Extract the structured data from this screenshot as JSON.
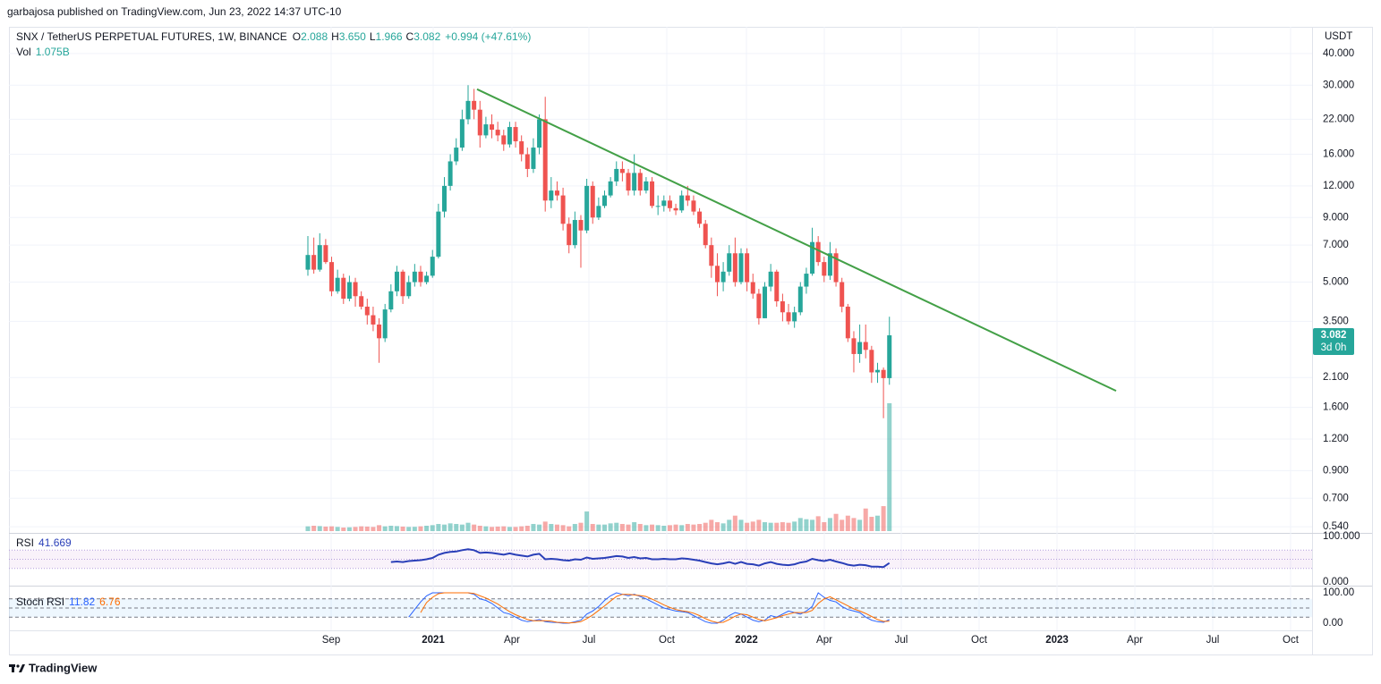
{
  "header": {
    "text": "garbajosa published on TradingView.com, Jun 23, 2022 14:37 UTC-10"
  },
  "footer": {
    "brand": "TradingView"
  },
  "chart_data": {
    "type": "candlestick",
    "title": "SNX / TetherUS PERPETUAL FUTURES, 1W, BINANCE",
    "ohlc_legend": [
      {
        "label": "O",
        "value": "2.088"
      },
      {
        "label": "H",
        "value": "3.650"
      },
      {
        "label": "L",
        "value": "1.966"
      },
      {
        "label": "C",
        "value": "3.082"
      }
    ],
    "change": "+0.994 (+47.61%)",
    "currency": "USDT",
    "log_scale": true,
    "grid": true,
    "up_color": "#26a69a",
    "down_color": "#ef5350",
    "ylim": [
      0.515,
      51
    ],
    "yticks": [
      {
        "value": 40,
        "label": "40.000"
      },
      {
        "value": 30,
        "label": "30.000"
      },
      {
        "value": 22,
        "label": "22.000"
      },
      {
        "value": 16,
        "label": "16.000"
      },
      {
        "value": 12,
        "label": "12.000"
      },
      {
        "value": 9,
        "label": "9.000"
      },
      {
        "value": 7,
        "label": "7.000"
      },
      {
        "value": 5,
        "label": "5.000"
      },
      {
        "value": 3.5,
        "label": "3.500"
      },
      {
        "value": 2.1,
        "label": "2.100"
      },
      {
        "value": 1.6,
        "label": "1.600"
      },
      {
        "value": 1.2,
        "label": "1.200"
      },
      {
        "value": 0.9,
        "label": "0.900"
      },
      {
        "value": 0.7,
        "label": "0.700"
      },
      {
        "value": 0.54,
        "label": "0.540"
      }
    ],
    "x_labels": [
      "Sep",
      "2021",
      "Apr",
      "Jul",
      "Oct",
      "2022",
      "Apr",
      "Jul",
      "Oct",
      "2023",
      "Apr",
      "Jul",
      "Oct"
    ],
    "open": [
      5.6,
      6.4,
      5.6,
      7.0,
      6.0,
      4.6,
      5.2,
      4.3,
      5.0,
      4.4,
      4.0,
      3.7,
      3.4,
      3.0,
      3.9,
      4.6,
      5.5,
      4.4,
      5.0,
      5.5,
      5.0,
      5.3,
      6.3,
      9.5,
      12.0,
      15.0,
      17.0,
      22.0,
      26.0,
      24.0,
      19.0,
      21.0,
      20.0,
      19.0,
      17.5,
      20.5,
      18.0,
      16.0,
      14.0,
      17.0,
      22.0,
      10.5,
      11.5,
      11.0,
      8.5,
      7.0,
      8.8,
      8.0,
      12.0,
      9.0,
      10.0,
      11.0,
      12.5,
      14.0,
      13.5,
      11.5,
      13.5,
      11.5,
      12.5,
      10.0,
      10.0,
      10.5,
      9.8,
      9.6,
      11.0,
      10.5,
      9.5,
      8.5,
      7.0,
      5.8,
      5.0,
      5.5,
      6.5,
      5.0,
      6.5,
      5.0,
      4.5,
      3.6,
      4.8,
      5.5,
      4.2,
      3.8,
      3.5,
      3.8,
      4.8,
      5.4,
      7.2,
      6.0,
      5.3,
      6.5,
      5.0,
      4.0,
      3.0,
      2.6,
      2.9,
      2.7,
      2.2,
      2.25,
      2.088
    ],
    "high": [
      7.6,
      7.5,
      7.8,
      7.4,
      6.3,
      5.6,
      5.4,
      5.3,
      5.2,
      4.6,
      4.3,
      4.0,
      3.6,
      4.1,
      4.9,
      5.8,
      5.6,
      5.3,
      5.9,
      5.8,
      5.5,
      6.7,
      10.2,
      13.0,
      16.0,
      18.5,
      24.0,
      30.0,
      29.0,
      26.0,
      22.5,
      23.0,
      21.5,
      20.0,
      21.5,
      21.5,
      19.0,
      17.0,
      18.5,
      23.0,
      27.0,
      13.0,
      12.5,
      11.8,
      9.0,
      9.5,
      9.2,
      12.8,
      12.5,
      10.8,
      11.5,
      13.0,
      15.0,
      15.0,
      14.0,
      16.0,
      14.0,
      13.0,
      13.0,
      11.0,
      11.0,
      11.0,
      10.2,
      11.5,
      12.0,
      11.0,
      9.8,
      8.8,
      7.5,
      6.5,
      6.0,
      7.0,
      7.5,
      6.8,
      6.8,
      5.4,
      4.7,
      5.0,
      5.9,
      5.6,
      4.5,
      4.1,
      4.0,
      5.0,
      5.7,
      8.2,
      7.6,
      6.3,
      7.2,
      6.8,
      5.2,
      4.1,
      3.2,
      3.4,
      3.4,
      2.8,
      2.4,
      2.3,
      3.65
    ],
    "low": [
      5.3,
      5.4,
      5.5,
      5.9,
      4.4,
      4.5,
      4.1,
      4.2,
      4.0,
      3.9,
      3.4,
      3.2,
      2.4,
      2.9,
      3.8,
      4.4,
      4.1,
      4.3,
      4.8,
      4.8,
      4.9,
      5.2,
      6.2,
      9.0,
      11.5,
      14.5,
      16.5,
      21.0,
      22.0,
      17.0,
      18.5,
      18.5,
      18.0,
      16.5,
      17.0,
      17.0,
      15.0,
      13.0,
      13.5,
      16.0,
      9.5,
      9.8,
      10.5,
      8.0,
      6.5,
      6.8,
      5.7,
      7.8,
      8.5,
      8.8,
      9.8,
      10.8,
      12.0,
      12.5,
      11.0,
      11.0,
      11.0,
      11.2,
      9.8,
      9.2,
      9.5,
      9.5,
      9.2,
      9.4,
      10.0,
      9.2,
      8.2,
      6.8,
      5.2,
      4.4,
      4.6,
      5.3,
      4.8,
      4.9,
      4.6,
      4.3,
      3.4,
      3.6,
      4.6,
      4.0,
      3.5,
      3.4,
      3.3,
      3.7,
      4.5,
      5.3,
      5.8,
      5.0,
      5.1,
      4.8,
      3.8,
      2.9,
      2.2,
      2.4,
      2.5,
      2.0,
      2.0,
      1.45,
      1.966
    ],
    "close": [
      6.4,
      5.6,
      7.0,
      6.0,
      4.6,
      5.2,
      4.3,
      5.0,
      4.4,
      4.0,
      3.7,
      3.4,
      3.0,
      3.9,
      4.6,
      5.5,
      4.4,
      5.0,
      5.5,
      5.0,
      5.3,
      6.3,
      9.5,
      12.0,
      15.0,
      17.0,
      22.0,
      26.0,
      24.0,
      19.0,
      21.0,
      20.0,
      19.0,
      17.5,
      20.5,
      18.0,
      16.0,
      14.0,
      17.0,
      22.0,
      10.5,
      11.5,
      11.0,
      8.5,
      7.0,
      8.8,
      8.0,
      12.0,
      9.0,
      10.0,
      11.0,
      12.5,
      14.0,
      13.5,
      11.5,
      13.5,
      11.5,
      12.5,
      10.0,
      10.0,
      10.5,
      9.8,
      9.6,
      11.0,
      10.5,
      9.5,
      8.5,
      7.0,
      5.8,
      5.0,
      5.5,
      6.5,
      5.0,
      6.5,
      5.0,
      4.5,
      3.6,
      4.8,
      5.5,
      4.2,
      3.8,
      3.5,
      3.8,
      4.8,
      5.4,
      7.2,
      6.0,
      5.3,
      6.5,
      5.0,
      4.0,
      3.0,
      2.6,
      2.9,
      2.7,
      2.2,
      2.25,
      2.088,
      3.082
    ],
    "price_badge": {
      "countdown": "3d 0h"
    },
    "volume": {
      "name": "Vol",
      "value_label": "1.075B",
      "values": [
        0.04,
        0.045,
        0.042,
        0.038,
        0.04,
        0.035,
        0.03,
        0.032,
        0.035,
        0.04,
        0.038,
        0.035,
        0.05,
        0.04,
        0.045,
        0.042,
        0.038,
        0.035,
        0.036,
        0.04,
        0.045,
        0.05,
        0.06,
        0.055,
        0.065,
        0.06,
        0.055,
        0.07,
        0.055,
        0.045,
        0.04,
        0.035,
        0.038,
        0.04,
        0.035,
        0.035,
        0.04,
        0.045,
        0.06,
        0.055,
        0.08,
        0.06,
        0.055,
        0.05,
        0.04,
        0.06,
        0.07,
        0.165,
        0.06,
        0.055,
        0.055,
        0.065,
        0.07,
        0.06,
        0.055,
        0.075,
        0.06,
        0.05,
        0.055,
        0.05,
        0.045,
        0.05,
        0.055,
        0.05,
        0.06,
        0.055,
        0.06,
        0.07,
        0.095,
        0.075,
        0.065,
        0.095,
        0.13,
        0.095,
        0.07,
        0.08,
        0.095,
        0.075,
        0.07,
        0.07,
        0.075,
        0.07,
        0.08,
        0.11,
        0.1,
        0.095,
        0.125,
        0.075,
        0.11,
        0.145,
        0.095,
        0.13,
        0.11,
        0.095,
        0.19,
        0.12,
        0.13,
        0.21,
        1.075
      ]
    },
    "trendline": {
      "color": "#43a047",
      "start": 28.9,
      "end": 1.86
    },
    "rsi": {
      "name": "RSI",
      "color": "#2a3fb8",
      "ylim": [
        0,
        100
      ],
      "yticks": [
        {
          "value": 100,
          "label": "100.000"
        },
        {
          "value": 0,
          "label": "0.000"
        }
      ],
      "bands": [
        30,
        50,
        70
      ],
      "values": [
        null,
        null,
        null,
        null,
        null,
        null,
        null,
        null,
        null,
        null,
        null,
        null,
        null,
        null,
        44,
        45,
        44,
        46,
        47,
        48,
        50,
        53,
        60,
        64,
        66,
        67,
        70,
        72,
        70,
        64,
        65,
        64,
        62,
        60,
        63,
        60,
        58,
        56,
        60,
        62,
        50,
        51,
        50,
        48,
        47,
        50,
        49,
        54,
        51,
        52,
        53,
        55,
        57,
        56,
        53,
        55,
        52,
        53,
        50,
        50,
        51,
        50,
        50,
        52,
        51,
        49,
        47,
        44,
        41,
        39,
        41,
        44,
        40,
        44,
        40,
        39,
        36,
        41,
        44,
        40,
        38,
        37,
        39,
        43,
        45,
        51,
        48,
        46,
        49,
        45,
        42,
        38,
        36,
        38,
        37,
        34,
        34,
        33,
        41.669
      ]
    },
    "stoch_rsi": {
      "name": "Stoch RSI",
      "ylim": [
        0,
        100
      ],
      "yticks": [
        {
          "value": 100,
          "label": "100.00"
        },
        {
          "value": 0,
          "label": "0.00"
        }
      ],
      "bands": [
        20,
        50,
        80
      ],
      "series": [
        {
          "color": "#2962ff",
          "values": [
            null,
            null,
            null,
            null,
            null,
            null,
            null,
            null,
            null,
            null,
            null,
            null,
            null,
            null,
            null,
            null,
            null,
            20,
            45,
            70,
            90,
            100,
            100,
            100,
            100,
            100,
            100,
            100,
            95,
            80,
            75,
            65,
            50,
            35,
            30,
            20,
            10,
            5,
            8,
            12,
            5,
            3,
            2,
            0,
            0,
            5,
            10,
            30,
            40,
            55,
            75,
            90,
            100,
            95,
            90,
            95,
            88,
            80,
            70,
            60,
            50,
            45,
            40,
            38,
            35,
            25,
            15,
            5,
            0,
            0,
            10,
            25,
            35,
            30,
            20,
            10,
            5,
            10,
            25,
            20,
            30,
            40,
            35,
            30,
            40,
            55,
            100,
            85,
            75,
            70,
            55,
            45,
            40,
            35,
            20,
            10,
            5,
            3,
            11.82
          ]
        },
        {
          "color": "#ff6d00",
          "values": [
            null,
            null,
            null,
            null,
            null,
            null,
            null,
            null,
            null,
            null,
            null,
            null,
            null,
            null,
            null,
            null,
            null,
            null,
            null,
            35,
            68,
            85,
            97,
            100,
            100,
            100,
            100,
            100,
            98,
            90,
            83,
            73,
            63,
            50,
            38,
            28,
            20,
            12,
            8,
            8,
            8,
            7,
            3,
            2,
            1,
            2,
            5,
            15,
            27,
            42,
            57,
            73,
            88,
            95,
            95,
            93,
            91,
            88,
            79,
            70,
            60,
            52,
            45,
            41,
            38,
            33,
            25,
            15,
            7,
            2,
            3,
            12,
            23,
            30,
            28,
            20,
            12,
            8,
            13,
            18,
            25,
            30,
            35,
            35,
            35,
            42,
            65,
            80,
            87,
            77,
            67,
            57,
            47,
            40,
            32,
            22,
            12,
            6,
            6.76
          ]
        }
      ]
    }
  }
}
